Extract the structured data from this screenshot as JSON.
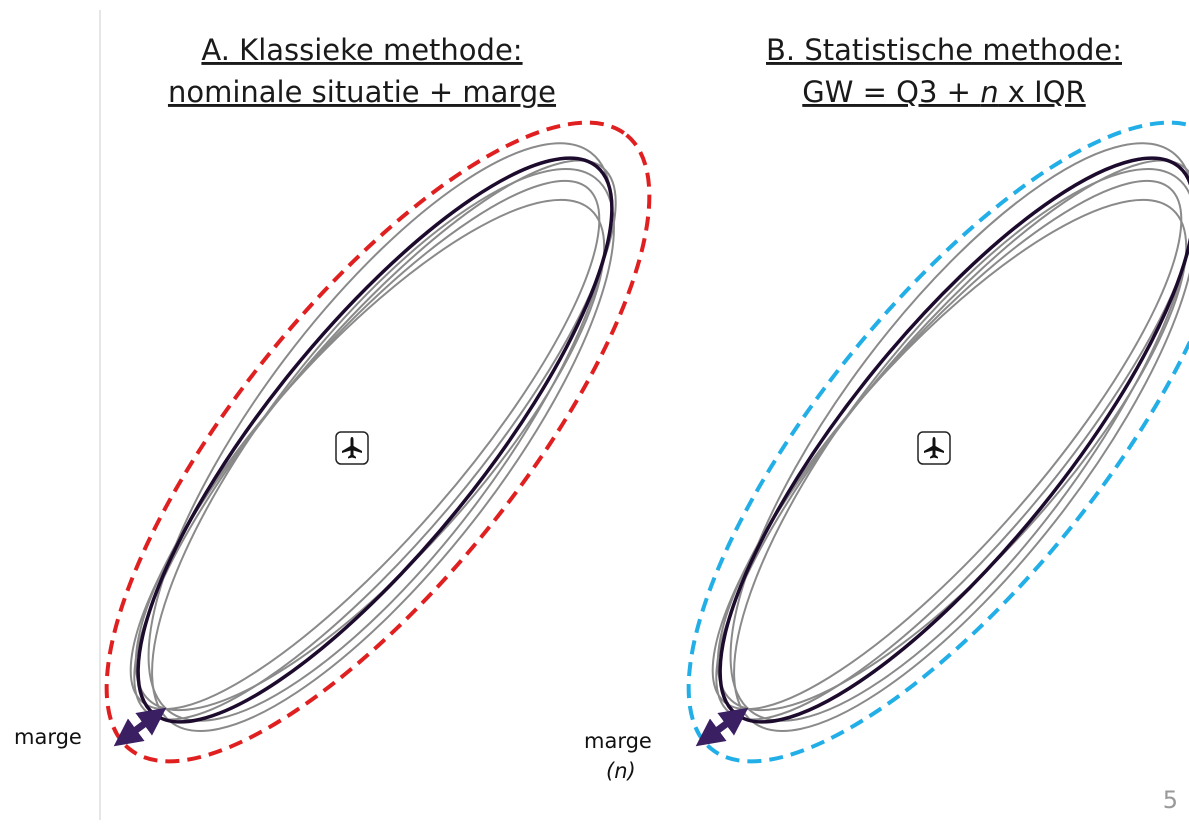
{
  "panel_a": {
    "title_line1": "A. Klassieke methode:",
    "title_line2": "nominale situatie + marge",
    "margin_label": "marge"
  },
  "panel_b": {
    "title_line1": "B. Statistische methode:",
    "title_line2_parts": [
      "GW = Q3 + ",
      "n",
      " x IQR"
    ],
    "margin_label": "marge",
    "margin_sublabel": "(n)"
  },
  "page_number": "5"
}
